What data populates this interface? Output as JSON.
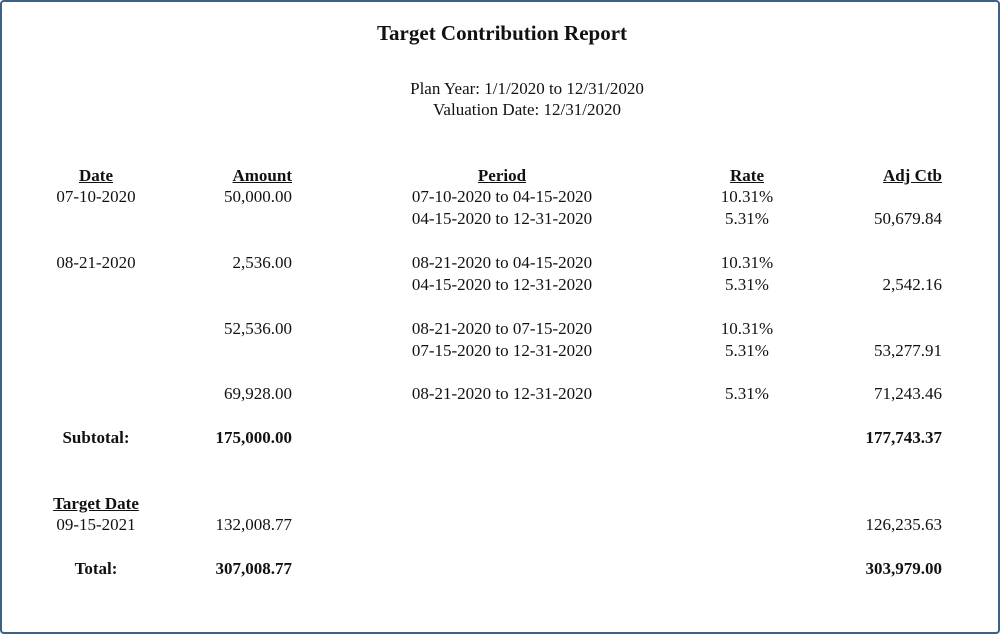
{
  "report": {
    "title": "Target Contribution Report",
    "plan_year": "Plan Year: 1/1/2020 to 12/31/2020",
    "valuation_date": "Valuation Date: 12/31/2020"
  },
  "columns": {
    "date": "Date",
    "amount": "Amount",
    "period": "Period",
    "rate": "Rate",
    "adj_ctb": "Adj Ctb"
  },
  "groups": [
    {
      "date": "07-10-2020",
      "amount": "50,000.00",
      "lines": [
        {
          "period": "07-10-2020 to 04-15-2020",
          "rate": "10.31%",
          "adj": ""
        },
        {
          "period": "04-15-2020 to 12-31-2020",
          "rate": "5.31%",
          "adj": "50,679.84"
        }
      ]
    },
    {
      "date": "08-21-2020",
      "amount": "2,536.00",
      "lines": [
        {
          "period": "08-21-2020 to 04-15-2020",
          "rate": "10.31%",
          "adj": ""
        },
        {
          "period": "04-15-2020 to 12-31-2020",
          "rate": "5.31%",
          "adj": "2,542.16"
        }
      ]
    },
    {
      "date": "",
      "amount": "52,536.00",
      "lines": [
        {
          "period": "08-21-2020 to 07-15-2020",
          "rate": "10.31%",
          "adj": ""
        },
        {
          "period": "07-15-2020 to 12-31-2020",
          "rate": "5.31%",
          "adj": "53,277.91"
        }
      ]
    },
    {
      "date": "",
      "amount": "69,928.00",
      "lines": [
        {
          "period": "08-21-2020 to 12-31-2020",
          "rate": "5.31%",
          "adj": "71,243.46"
        }
      ]
    }
  ],
  "subtotal": {
    "label": "Subtotal:",
    "amount": "175,000.00",
    "adj": "177,743.37"
  },
  "target": {
    "header": "Target Date",
    "date": "09-15-2021",
    "amount": "132,008.77",
    "adj": "126,235.63"
  },
  "total": {
    "label": "Total:",
    "amount": "307,008.77",
    "adj": "303,979.00"
  }
}
